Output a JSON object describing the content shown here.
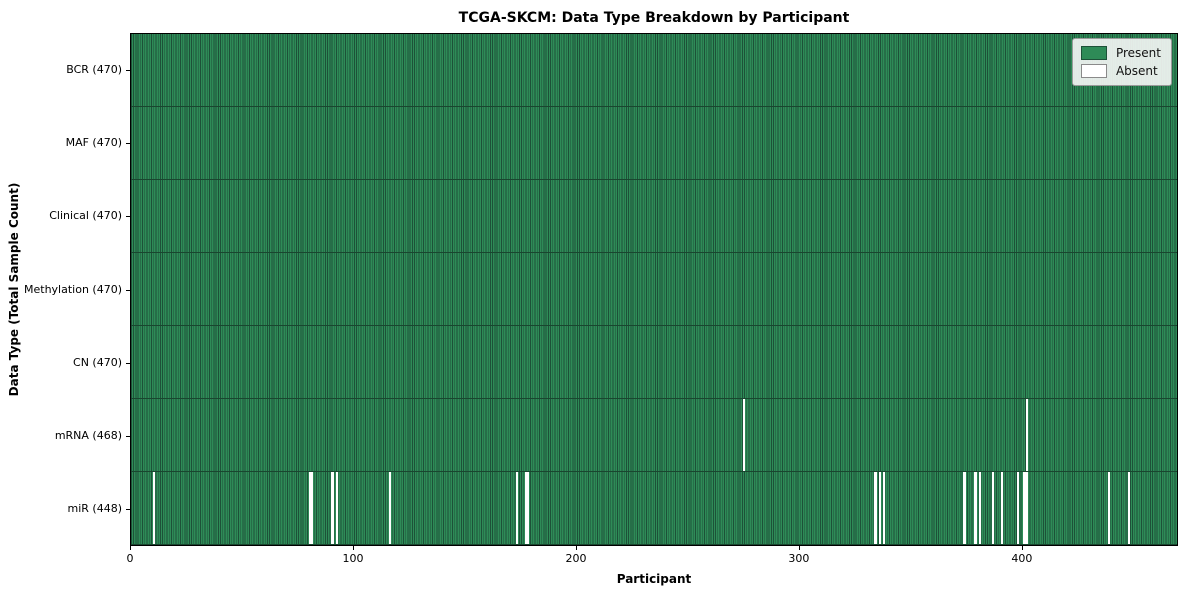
{
  "chart_data": {
    "type": "heatmap",
    "title": "TCGA-SKCM: Data Type Breakdown by Participant",
    "xlabel": "Participant",
    "ylabel": "Data Type (Total Sample Count)",
    "n_participants": 470,
    "x_ticks": [
      0,
      100,
      200,
      300,
      400
    ],
    "legend": [
      {
        "label": "Present",
        "color": "#2e8b57",
        "edge": "#1d5138"
      },
      {
        "label": "Absent",
        "color": "#ffffff",
        "edge": "#8a8a8a"
      }
    ],
    "colors": {
      "present": "#2e8b57",
      "bar_edge": "#1d5138",
      "row_divider": "#19462f",
      "absent": "#ffffff",
      "spine": "#000000"
    },
    "rows": [
      {
        "label": "BCR (470)",
        "total": 470,
        "absent": []
      },
      {
        "label": "MAF (470)",
        "total": 470,
        "absent": []
      },
      {
        "label": "Clinical (470)",
        "total": 470,
        "absent": []
      },
      {
        "label": "Methylation (470)",
        "total": 470,
        "absent": []
      },
      {
        "label": "CN (470)",
        "total": 470,
        "absent": []
      },
      {
        "label": "mRNA (468)",
        "total": 468,
        "absent": [
          275,
          402
        ]
      },
      {
        "label": "miR (448)",
        "total": 448,
        "absent": [
          10,
          80,
          81,
          90,
          92,
          116,
          173,
          177,
          178,
          334,
          336,
          338,
          374,
          379,
          381,
          387,
          391,
          398,
          401,
          402,
          439,
          448
        ]
      }
    ]
  }
}
